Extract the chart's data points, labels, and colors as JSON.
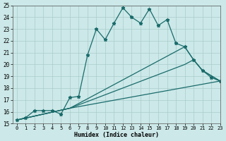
{
  "bg_color": "#cce8e8",
  "grid_color": "#aacccc",
  "line_color": "#1a6b6b",
  "x_label": "Humidex (Indice chaleur)",
  "ylim": [
    15,
    25
  ],
  "xlim": [
    -0.5,
    23
  ],
  "yticks": [
    15,
    16,
    17,
    18,
    19,
    20,
    21,
    22,
    23,
    24,
    25
  ],
  "xticks": [
    0,
    1,
    2,
    3,
    4,
    5,
    6,
    7,
    8,
    9,
    10,
    11,
    12,
    13,
    14,
    15,
    16,
    17,
    18,
    19,
    20,
    21,
    22,
    23
  ],
  "series": [
    {
      "x": [
        0,
        1,
        2,
        3,
        4,
        5,
        6,
        7,
        8,
        9,
        10,
        11,
        12,
        13,
        14,
        15,
        16,
        17,
        18,
        19,
        20,
        21,
        22,
        23
      ],
      "y": [
        15.3,
        15.5,
        16.1,
        16.1,
        16.1,
        15.8,
        17.2,
        17.3,
        20.8,
        23.0,
        22.1,
        23.5,
        24.8,
        24.0,
        23.5,
        24.7,
        23.3,
        23.8,
        21.8,
        21.5,
        20.4,
        19.5,
        18.9,
        18.6
      ],
      "marker": "*",
      "markersize": 3.5,
      "linewidth": 0.9
    },
    {
      "x": [
        0,
        6,
        19,
        20,
        21,
        23
      ],
      "y": [
        15.3,
        16.3,
        21.5,
        20.4,
        19.5,
        18.6
      ],
      "marker": null,
      "markersize": 0,
      "linewidth": 0.9
    },
    {
      "x": [
        0,
        6,
        19,
        20,
        21,
        23
      ],
      "y": [
        15.3,
        16.3,
        20.0,
        20.4,
        19.5,
        18.6
      ],
      "marker": null,
      "markersize": 0,
      "linewidth": 0.9
    },
    {
      "x": [
        0,
        6,
        23
      ],
      "y": [
        15.3,
        16.3,
        18.6
      ],
      "marker": null,
      "markersize": 0,
      "linewidth": 0.9
    }
  ]
}
